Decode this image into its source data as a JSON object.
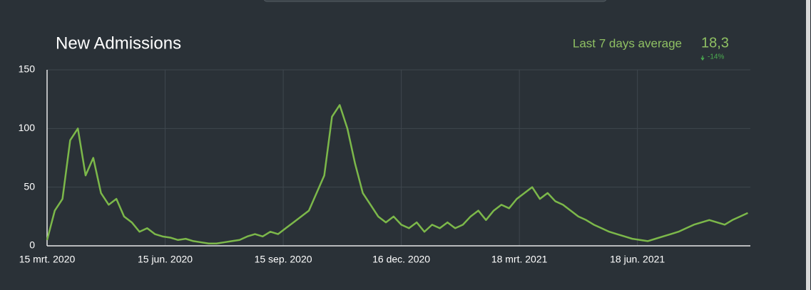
{
  "header": {
    "avg_label": "Last 7 days average",
    "avg_value": "18,3",
    "avg_change": "-14%"
  },
  "chart_data": {
    "type": "line",
    "title": "New Admissions",
    "x": [
      "2020-03-15",
      "2020-03-21",
      "2020-03-27",
      "2020-04-02",
      "2020-04-08",
      "2020-04-14",
      "2020-04-20",
      "2020-04-26",
      "2020-05-02",
      "2020-05-08",
      "2020-05-14",
      "2020-05-20",
      "2020-05-26",
      "2020-06-01",
      "2020-06-07",
      "2020-06-13",
      "2020-06-19",
      "2020-06-25",
      "2020-07-01",
      "2020-07-07",
      "2020-07-13",
      "2020-07-19",
      "2020-07-25",
      "2020-07-31",
      "2020-08-06",
      "2020-08-12",
      "2020-08-18",
      "2020-08-24",
      "2020-08-30",
      "2020-09-05",
      "2020-09-11",
      "2020-09-17",
      "2020-09-23",
      "2020-09-29",
      "2020-10-05",
      "2020-10-11",
      "2020-10-17",
      "2020-10-23",
      "2020-10-29",
      "2020-11-04",
      "2020-11-10",
      "2020-11-16",
      "2020-11-22",
      "2020-11-28",
      "2020-12-04",
      "2020-12-10",
      "2020-12-16",
      "2020-12-22",
      "2020-12-28",
      "2021-01-03",
      "2021-01-09",
      "2021-01-15",
      "2021-01-21",
      "2021-01-27",
      "2021-02-02",
      "2021-02-08",
      "2021-02-14",
      "2021-02-20",
      "2021-02-26",
      "2021-03-04",
      "2021-03-10",
      "2021-03-16",
      "2021-03-22",
      "2021-03-28",
      "2021-04-03",
      "2021-04-09",
      "2021-04-15",
      "2021-04-21",
      "2021-04-27",
      "2021-05-03",
      "2021-05-09",
      "2021-05-15",
      "2021-05-21",
      "2021-05-27",
      "2021-06-02",
      "2021-06-08",
      "2021-06-14",
      "2021-06-20",
      "2021-06-26",
      "2021-07-02",
      "2021-07-08",
      "2021-07-14",
      "2021-07-20",
      "2021-07-26",
      "2021-08-01",
      "2021-08-07",
      "2021-08-13",
      "2021-08-19",
      "2021-08-25",
      "2021-08-31",
      "2021-09-06",
      "2021-09-12"
    ],
    "series": [
      {
        "name": "New Admissions",
        "color": "#7cb84a",
        "values": [
          5,
          30,
          40,
          90,
          100,
          60,
          75,
          45,
          35,
          40,
          25,
          20,
          12,
          15,
          10,
          8,
          7,
          5,
          6,
          4,
          3,
          2,
          2,
          3,
          4,
          5,
          8,
          10,
          8,
          12,
          10,
          15,
          20,
          25,
          30,
          45,
          60,
          110,
          120,
          100,
          70,
          45,
          35,
          25,
          20,
          25,
          18,
          15,
          20,
          12,
          18,
          15,
          20,
          15,
          18,
          25,
          30,
          22,
          30,
          35,
          32,
          40,
          45,
          50,
          40,
          45,
          38,
          35,
          30,
          25,
          22,
          18,
          15,
          12,
          10,
          8,
          6,
          5,
          4,
          6,
          8,
          10,
          12,
          15,
          18,
          20,
          22,
          20,
          18,
          22,
          25,
          28
        ]
      }
    ],
    "xlim": [
      "2020-03-15",
      "2021-09-14"
    ],
    "xticks": [
      {
        "value": "2020-03-15",
        "label": "15 mrt. 2020"
      },
      {
        "value": "2020-06-15",
        "label": "15 jun. 2020"
      },
      {
        "value": "2020-09-15",
        "label": "15 sep. 2020"
      },
      {
        "value": "2020-12-16",
        "label": "16 dec. 2020"
      },
      {
        "value": "2021-03-18",
        "label": "18 mrt. 2021"
      },
      {
        "value": "2021-06-18",
        "label": "18 jun. 2021"
      }
    ],
    "ylim": [
      0,
      150
    ],
    "yticks": [
      0,
      50,
      100,
      150
    ],
    "grid": true
  }
}
